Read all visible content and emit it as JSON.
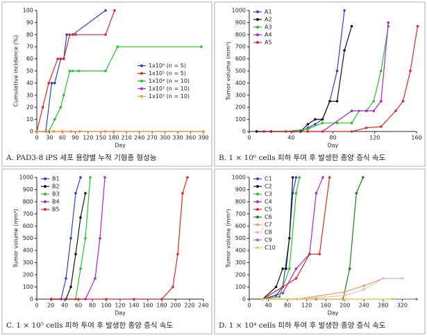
{
  "chart_data": [
    {
      "type": "line",
      "caption": "A. PAD3-8 iPS 세포 용량별 누적 기형종 형성능",
      "xlabel": "Day",
      "ylabel": "Cumulative incidence (%)",
      "xlim": [
        0,
        390
      ],
      "ylim": [
        0,
        100
      ],
      "xticks": [
        0,
        30,
        60,
        90,
        120,
        150,
        180,
        210,
        240,
        270,
        300,
        330,
        360,
        390
      ],
      "yticks": [
        0,
        10,
        20,
        30,
        40,
        50,
        60,
        70,
        80,
        90,
        100
      ],
      "legend": "center right",
      "series": [
        {
          "name": "1x10⁶ (n = 5)",
          "color": "#2a3fd1",
          "x": [
            0,
            21,
            35,
            42,
            56,
            63,
            70,
            84,
            161
          ],
          "values": [
            0,
            0,
            40,
            40,
            60,
            60,
            80,
            80,
            100
          ]
        },
        {
          "name": "1x10⁵ (n = 5)",
          "color": "#e02525",
          "x": [
            0,
            14,
            28,
            49,
            63,
            77,
            91,
            161,
            182
          ],
          "values": [
            0,
            20,
            40,
            60,
            60,
            80,
            80,
            80,
            100
          ]
        },
        {
          "name": "1x10⁴ (n = 10)",
          "color": "#22c422",
          "x": [
            0,
            28,
            42,
            56,
            63,
            77,
            84,
            98,
            161,
            189,
            385
          ],
          "values": [
            0,
            0,
            10,
            20,
            30,
            50,
            50,
            50,
            50,
            70,
            70
          ]
        },
        {
          "name": "1x10³ (n = 10)",
          "color": "#b21fd0",
          "x": [
            0,
            20,
            40,
            60,
            80,
            100,
            160,
            180,
            390
          ],
          "values": [
            0,
            0,
            0,
            0,
            0,
            0,
            0,
            0,
            0
          ]
        },
        {
          "name": "1x10² (n = 10)",
          "color": "#f0a020",
          "x": [
            0,
            20,
            40,
            60,
            80,
            100,
            160,
            180,
            390
          ],
          "values": [
            0,
            0,
            0,
            0,
            0,
            0,
            0,
            0,
            0
          ]
        }
      ]
    },
    {
      "type": "line",
      "caption": "B. 1 × 10⁶ cells 피하 투여 후 발생한 종양 증식 속도",
      "xlabel": "Day",
      "ylabel": "Tumor volume (mm³)",
      "xlim": [
        0,
        160
      ],
      "ylim": [
        0,
        1000
      ],
      "xticks": [
        0,
        40,
        80,
        120,
        160
      ],
      "yticks": [
        0,
        100,
        200,
        300,
        400,
        500,
        600,
        700,
        800,
        900,
        1000
      ],
      "legend": "upper left",
      "series": [
        {
          "name": "A1",
          "color": "#2a3fd1",
          "x": [
            7,
            21,
            35,
            49,
            56,
            63,
            70,
            77,
            84,
            91
          ],
          "values": [
            0,
            0,
            0,
            0,
            30,
            60,
            100,
            250,
            500,
            1000
          ]
        },
        {
          "name": "A2",
          "color": "#111111",
          "x": [
            7,
            21,
            35,
            49,
            56,
            63,
            70,
            77,
            84,
            91,
            98
          ],
          "values": [
            0,
            0,
            0,
            0,
            60,
            100,
            100,
            250,
            250,
            670,
            870
          ]
        },
        {
          "name": "A3",
          "color": "#22c422",
          "x": [
            14,
            35,
            56,
            70,
            84,
            98,
            105,
            112,
            119,
            126,
            133
          ],
          "values": [
            0,
            0,
            20,
            70,
            70,
            70,
            170,
            170,
            250,
            500,
            870
          ]
        },
        {
          "name": "A4",
          "color": "#b21fd0",
          "x": [
            14,
            42,
            70,
            98,
            112,
            119,
            126,
            133
          ],
          "values": [
            0,
            0,
            0,
            170,
            170,
            170,
            250,
            900
          ]
        },
        {
          "name": "A5",
          "color": "#e02525",
          "x": [
            14,
            56,
            98,
            112,
            126,
            140,
            147,
            154,
            161
          ],
          "values": [
            0,
            0,
            0,
            30,
            40,
            170,
            250,
            500,
            870
          ]
        }
      ]
    },
    {
      "type": "line",
      "caption": "C. 1 × 10⁵ cells 피하 투여 후 발생한 종양 증식 속도",
      "xlabel": "Day",
      "ylabel": "Tumor volume (mm³)",
      "xlim": [
        0,
        240
      ],
      "ylim": [
        0,
        1000
      ],
      "xticks": [
        0,
        20,
        40,
        60,
        80,
        100,
        120,
        140,
        160,
        180,
        200,
        220,
        240
      ],
      "yticks": [
        0,
        100,
        200,
        300,
        400,
        500,
        600,
        700,
        800,
        900,
        1000
      ],
      "legend": "upper left",
      "series": [
        {
          "name": "B1",
          "color": "#2a3fd1",
          "x": [
            21,
            35,
            42,
            49,
            56,
            63
          ],
          "values": [
            0,
            0,
            170,
            500,
            870,
            1000
          ]
        },
        {
          "name": "B2",
          "color": "#111111",
          "x": [
            21,
            42,
            49,
            56,
            63,
            70
          ],
          "values": [
            0,
            0,
            100,
            370,
            670,
            870
          ]
        },
        {
          "name": "B3",
          "color": "#22c422",
          "x": [
            21,
            56,
            63,
            70,
            77
          ],
          "values": [
            0,
            0,
            250,
            500,
            1000
          ]
        },
        {
          "name": "B4",
          "color": "#b21fd0",
          "x": [
            21,
            70,
            84,
            91,
            98
          ],
          "values": [
            0,
            0,
            170,
            500,
            1000
          ]
        },
        {
          "name": "B5",
          "color": "#e02525",
          "x": [
            21,
            60,
            100,
            140,
            180,
            196,
            203,
            210,
            217
          ],
          "values": [
            0,
            0,
            0,
            0,
            0,
            100,
            370,
            870,
            1000
          ]
        }
      ]
    },
    {
      "type": "line",
      "caption": "D. 1 × 10⁴ cells 피하 투여 후 발생한 종양 증식 속도",
      "xlabel": "Day",
      "ylabel": "Tumor volume (mm³)",
      "xlim": [
        0,
        350
      ],
      "ylim": [
        0,
        1000
      ],
      "xticks": [
        0,
        40,
        80,
        120,
        160,
        200,
        240,
        280,
        320
      ],
      "yticks": [
        0,
        100,
        200,
        300,
        400,
        500,
        600,
        700,
        800,
        900,
        1000
      ],
      "legend": "upper left",
      "series": [
        {
          "name": "C1",
          "color": "#2a3fd1",
          "x": [
            28,
            56,
            70,
            84,
            91,
            98
          ],
          "values": [
            0,
            30,
            100,
            500,
            870,
            1000
          ]
        },
        {
          "name": "C2",
          "color": "#111111",
          "x": [
            28,
            56,
            70,
            77,
            84,
            91
          ],
          "values": [
            0,
            100,
            250,
            250,
            500,
            1000
          ]
        },
        {
          "name": "C3",
          "color": "#22c422",
          "x": [
            28,
            63,
            84,
            98,
            105
          ],
          "values": [
            0,
            20,
            250,
            870,
            1000
          ]
        },
        {
          "name": "C4",
          "color": "#b21fd0",
          "x": [
            28,
            70,
            98,
            126,
            140,
            154
          ],
          "values": [
            0,
            50,
            250,
            370,
            870,
            1000
          ]
        },
        {
          "name": "C5",
          "color": "#e02525",
          "x": [
            28,
            70,
            98,
            126,
            147,
            168
          ],
          "values": [
            0,
            100,
            170,
            370,
            370,
            1000
          ]
        },
        {
          "name": "C6",
          "color": "#1e7a1e",
          "x": [
            28,
            140,
            196,
            210,
            224,
            238
          ],
          "values": [
            0,
            0,
            0,
            250,
            870,
            1000
          ]
        },
        {
          "name": "C7",
          "color": "#e0a060",
          "x": [
            28,
            100,
            200,
            240,
            280,
            320
          ],
          "values": [
            0,
            0,
            60,
            110,
            170,
            170
          ]
        },
        {
          "name": "C8",
          "color": "#f0b8c8",
          "x": [
            28,
            100,
            200,
            240,
            280,
            320
          ],
          "values": [
            0,
            0,
            30,
            80,
            170,
            170
          ]
        },
        {
          "name": "C9",
          "color": "#7080b0",
          "x": [
            28,
            100,
            200,
            300,
            350
          ],
          "values": [
            0,
            0,
            0,
            0,
            0
          ]
        },
        {
          "name": "C10",
          "color": "#f5d040",
          "x": [
            28,
            100,
            200,
            300
          ],
          "values": [
            0,
            0,
            0,
            0
          ]
        }
      ]
    }
  ]
}
